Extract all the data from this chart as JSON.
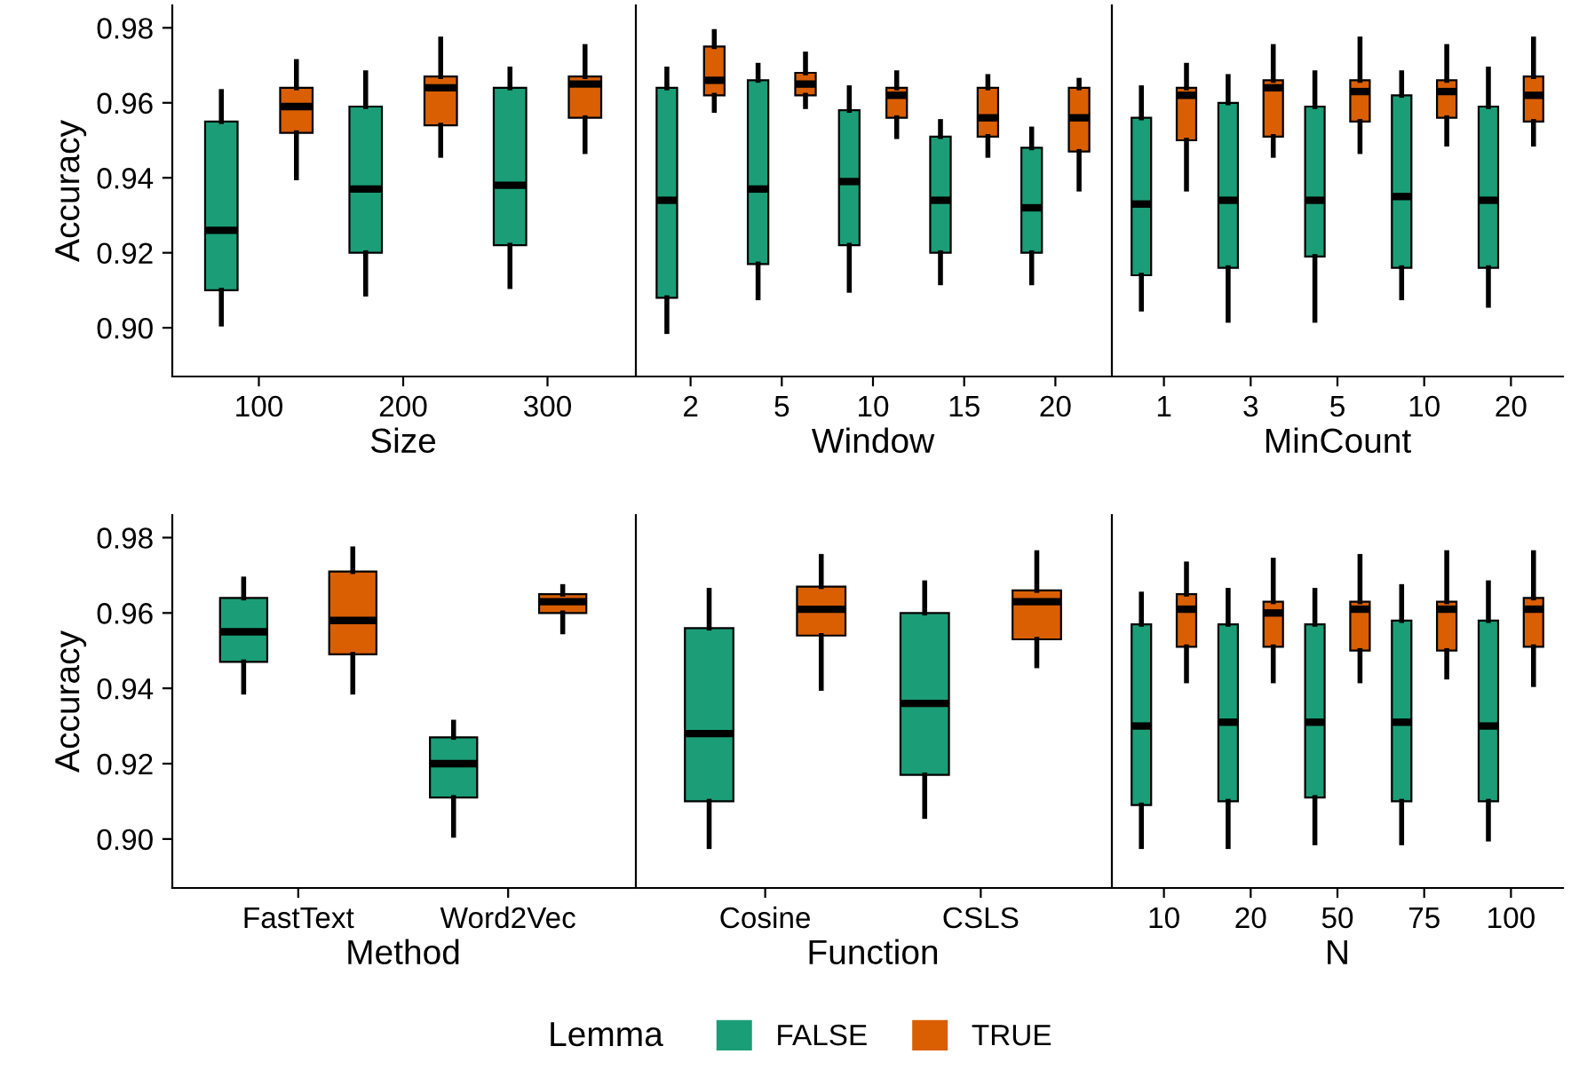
{
  "chart_data": [
    {
      "type": "box",
      "xlabel": "Size",
      "ylabel": "Accuracy",
      "categories": [
        "100",
        "200",
        "300"
      ],
      "ylim": [
        0.887,
        0.986
      ],
      "legend": "bottom",
      "legend_title": "Lemma",
      "yticks": [
        {
          "value": 0.9,
          "label": "0.90"
        },
        {
          "value": 0.92,
          "label": "0.92"
        },
        {
          "value": 0.94,
          "label": "0.94"
        },
        {
          "value": 0.96,
          "label": "0.96"
        },
        {
          "value": 0.98,
          "label": "0.98"
        }
      ],
      "grid": false,
      "series": [
        {
          "name": "FALSE",
          "color": "#1b9e77",
          "boxes": [
            {
              "low": 0.901,
              "q1": 0.91,
              "median": 0.926,
              "q3": 0.955,
              "high": 0.963
            },
            {
              "low": 0.909,
              "q1": 0.92,
              "median": 0.937,
              "q3": 0.959,
              "high": 0.968
            },
            {
              "low": 0.911,
              "q1": 0.922,
              "median": 0.938,
              "q3": 0.964,
              "high": 0.969
            }
          ]
        },
        {
          "name": "TRUE",
          "color": "#d95f02",
          "boxes": [
            {
              "low": 0.94,
              "q1": 0.952,
              "median": 0.959,
              "q3": 0.964,
              "high": 0.971
            },
            {
              "low": 0.946,
              "q1": 0.954,
              "median": 0.964,
              "q3": 0.967,
              "high": 0.977
            },
            {
              "low": 0.947,
              "q1": 0.956,
              "median": 0.965,
              "q3": 0.967,
              "high": 0.975
            }
          ]
        }
      ]
    },
    {
      "type": "box",
      "xlabel": "Window",
      "categories": [
        "2",
        "5",
        "10",
        "15",
        "20"
      ],
      "ylim": [
        0.887,
        0.986
      ],
      "tick_labels": "x",
      "grid": false,
      "series": [
        {
          "name": "FALSE",
          "color": "#1b9e77",
          "boxes": [
            {
              "low": 0.899,
              "q1": 0.908,
              "median": 0.934,
              "q3": 0.964,
              "high": 0.969
            },
            {
              "low": 0.908,
              "q1": 0.917,
              "median": 0.937,
              "q3": 0.966,
              "high": 0.97
            },
            {
              "low": 0.91,
              "q1": 0.922,
              "median": 0.939,
              "q3": 0.958,
              "high": 0.964
            },
            {
              "low": 0.912,
              "q1": 0.92,
              "median": 0.934,
              "q3": 0.951,
              "high": 0.955
            },
            {
              "low": 0.912,
              "q1": 0.92,
              "median": 0.932,
              "q3": 0.948,
              "high": 0.953
            }
          ]
        },
        {
          "name": "TRUE",
          "color": "#d95f02",
          "boxes": [
            {
              "low": 0.958,
              "q1": 0.962,
              "median": 0.966,
              "q3": 0.975,
              "high": 0.979
            },
            {
              "low": 0.959,
              "q1": 0.962,
              "median": 0.965,
              "q3": 0.968,
              "high": 0.973
            },
            {
              "low": 0.951,
              "q1": 0.956,
              "median": 0.962,
              "q3": 0.964,
              "high": 0.968
            },
            {
              "low": 0.946,
              "q1": 0.951,
              "median": 0.956,
              "q3": 0.964,
              "high": 0.967
            },
            {
              "low": 0.937,
              "q1": 0.947,
              "median": 0.956,
              "q3": 0.964,
              "high": 0.966
            }
          ]
        }
      ]
    },
    {
      "type": "box",
      "xlabel": "MinCount",
      "categories": [
        "1",
        "3",
        "5",
        "10",
        "20"
      ],
      "ylim": [
        0.887,
        0.986
      ],
      "tick_labels": "x",
      "grid": false,
      "series": [
        {
          "name": "FALSE",
          "color": "#1b9e77",
          "boxes": [
            {
              "low": 0.905,
              "q1": 0.914,
              "median": 0.933,
              "q3": 0.956,
              "high": 0.964
            },
            {
              "low": 0.902,
              "q1": 0.916,
              "median": 0.934,
              "q3": 0.96,
              "high": 0.967
            },
            {
              "low": 0.902,
              "q1": 0.919,
              "median": 0.934,
              "q3": 0.959,
              "high": 0.968
            },
            {
              "low": 0.908,
              "q1": 0.916,
              "median": 0.935,
              "q3": 0.962,
              "high": 0.968
            },
            {
              "low": 0.906,
              "q1": 0.916,
              "median": 0.934,
              "q3": 0.959,
              "high": 0.969
            }
          ]
        },
        {
          "name": "TRUE",
          "color": "#d95f02",
          "boxes": [
            {
              "low": 0.937,
              "q1": 0.95,
              "median": 0.962,
              "q3": 0.964,
              "high": 0.97
            },
            {
              "low": 0.946,
              "q1": 0.951,
              "median": 0.964,
              "q3": 0.966,
              "high": 0.975
            },
            {
              "low": 0.947,
              "q1": 0.955,
              "median": 0.963,
              "q3": 0.966,
              "high": 0.977
            },
            {
              "low": 0.949,
              "q1": 0.956,
              "median": 0.963,
              "q3": 0.966,
              "high": 0.975
            },
            {
              "low": 0.949,
              "q1": 0.955,
              "median": 0.962,
              "q3": 0.967,
              "high": 0.977
            }
          ]
        }
      ]
    },
    {
      "type": "box",
      "xlabel": "Method",
      "ylabel": "Accuracy",
      "categories": [
        "FastText",
        "Word2Vec"
      ],
      "ylim": [
        0.887,
        0.986
      ],
      "yticks": [
        {
          "value": 0.9,
          "label": "0.90"
        },
        {
          "value": 0.92,
          "label": "0.92"
        },
        {
          "value": 0.94,
          "label": "0.94"
        },
        {
          "value": 0.96,
          "label": "0.96"
        },
        {
          "value": 0.98,
          "label": "0.98"
        }
      ],
      "grid": false,
      "series": [
        {
          "name": "FALSE",
          "color": "#1b9e77",
          "boxes": [
            {
              "low": 0.939,
              "q1": 0.947,
              "median": 0.955,
              "q3": 0.964,
              "high": 0.969
            },
            {
              "low": 0.901,
              "q1": 0.911,
              "median": 0.92,
              "q3": 0.927,
              "high": 0.931
            }
          ]
        },
        {
          "name": "TRUE",
          "color": "#d95f02",
          "boxes": [
            {
              "low": 0.939,
              "q1": 0.949,
              "median": 0.958,
              "q3": 0.971,
              "high": 0.977
            },
            {
              "low": 0.955,
              "q1": 0.96,
              "median": 0.963,
              "q3": 0.965,
              "high": 0.967
            }
          ]
        }
      ]
    },
    {
      "type": "box",
      "xlabel": "Function",
      "categories": [
        "Cosine",
        "CSLS"
      ],
      "ylim": [
        0.887,
        0.986
      ],
      "tick_labels": "x",
      "grid": false,
      "series": [
        {
          "name": "FALSE",
          "color": "#1b9e77",
          "boxes": [
            {
              "low": 0.898,
              "q1": 0.91,
              "median": 0.928,
              "q3": 0.956,
              "high": 0.966
            },
            {
              "low": 0.906,
              "q1": 0.917,
              "median": 0.936,
              "q3": 0.96,
              "high": 0.968
            }
          ]
        },
        {
          "name": "TRUE",
          "color": "#d95f02",
          "boxes": [
            {
              "low": 0.94,
              "q1": 0.954,
              "median": 0.961,
              "q3": 0.967,
              "high": 0.975
            },
            {
              "low": 0.946,
              "q1": 0.953,
              "median": 0.963,
              "q3": 0.966,
              "high": 0.976
            }
          ]
        }
      ]
    },
    {
      "type": "box",
      "xlabel": "N",
      "categories": [
        "10",
        "20",
        "50",
        "75",
        "100"
      ],
      "ylim": [
        0.887,
        0.986
      ],
      "tick_labels": "x",
      "grid": false,
      "series": [
        {
          "name": "FALSE",
          "color": "#1b9e77",
          "boxes": [
            {
              "low": 0.898,
              "q1": 0.909,
              "median": 0.93,
              "q3": 0.957,
              "high": 0.965
            },
            {
              "low": 0.898,
              "q1": 0.91,
              "median": 0.931,
              "q3": 0.957,
              "high": 0.966
            },
            {
              "low": 0.899,
              "q1": 0.911,
              "median": 0.931,
              "q3": 0.957,
              "high": 0.966
            },
            {
              "low": 0.899,
              "q1": 0.91,
              "median": 0.931,
              "q3": 0.958,
              "high": 0.967
            },
            {
              "low": 0.9,
              "q1": 0.91,
              "median": 0.93,
              "q3": 0.958,
              "high": 0.968
            }
          ]
        },
        {
          "name": "TRUE",
          "color": "#d95f02",
          "boxes": [
            {
              "low": 0.942,
              "q1": 0.951,
              "median": 0.961,
              "q3": 0.965,
              "high": 0.973
            },
            {
              "low": 0.942,
              "q1": 0.951,
              "median": 0.96,
              "q3": 0.963,
              "high": 0.974
            },
            {
              "low": 0.942,
              "q1": 0.95,
              "median": 0.961,
              "q3": 0.963,
              "high": 0.975
            },
            {
              "low": 0.943,
              "q1": 0.95,
              "median": 0.961,
              "q3": 0.963,
              "high": 0.976
            },
            {
              "low": 0.941,
              "q1": 0.951,
              "median": 0.961,
              "q3": 0.964,
              "high": 0.976
            }
          ]
        }
      ]
    }
  ]
}
